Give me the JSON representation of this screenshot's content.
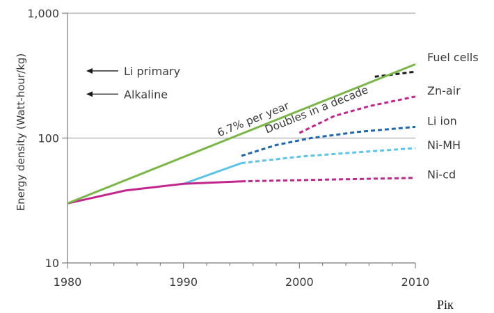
{
  "chart_data": {
    "type": "line",
    "title": "",
    "xlabel": "",
    "x_unit_label": "Рік",
    "ylabel": "Energy density (Watt-hour/kg)",
    "y_scale": "log",
    "xlim": [
      1980,
      2010
    ],
    "ylim": [
      10,
      1000
    ],
    "x_ticks": [
      1980,
      1990,
      2000,
      2010
    ],
    "y_ticks": [
      10,
      100,
      1000
    ],
    "y_tick_labels": [
      "10",
      "100",
      "1,000"
    ],
    "grid": "horizontal",
    "series": [
      {
        "name": "Fuel cells",
        "color": "#1a1a1a",
        "style": "dashed",
        "points": [
          [
            2006.5,
            310
          ],
          [
            2010,
            340
          ]
        ]
      },
      {
        "name": "Zn-air",
        "color": "#c2268c",
        "style": "dashed",
        "points": [
          [
            2000,
            110
          ],
          [
            2003,
            150
          ],
          [
            2006,
            180
          ],
          [
            2010,
            215
          ]
        ]
      },
      {
        "name": "Li ion",
        "color": "#1f67ad",
        "style": "dashed",
        "points": [
          [
            1995,
            72
          ],
          [
            1998,
            88
          ],
          [
            2001,
            100
          ],
          [
            2005,
            112
          ],
          [
            2010,
            123
          ]
        ]
      },
      {
        "name": "Ni-MH",
        "color": "#5cc3ea",
        "style": "dashed",
        "points": [
          [
            1995,
            63
          ],
          [
            2000,
            71
          ],
          [
            2005,
            77
          ],
          [
            2010,
            83
          ]
        ]
      },
      {
        "name": "Ni-cd",
        "color": "#c2268c",
        "style": "dashed",
        "points": [
          [
            1995,
            45
          ],
          [
            2000,
            46
          ],
          [
            2005,
            47
          ],
          [
            2010,
            48
          ]
        ]
      },
      {
        "name": "",
        "color": "#5cc3ea",
        "style": "solid",
        "points": [
          [
            1990,
            43
          ],
          [
            1995,
            63
          ]
        ]
      },
      {
        "name": "",
        "color": "#c2268c",
        "style": "solid",
        "points": [
          [
            1980,
            30
          ],
          [
            1985,
            38
          ],
          [
            1990,
            43
          ],
          [
            1995,
            45
          ]
        ]
      },
      {
        "name": "",
        "color": "#7ab648",
        "style": "solid",
        "points": [
          [
            1980,
            30
          ],
          [
            2010,
            390
          ]
        ]
      }
    ],
    "trend_annotation": {
      "line1": "6.7% per year",
      "line2": "Doubles in a decade"
    },
    "side_notes": [
      {
        "text": "Li primary",
        "y_value": 345
      },
      {
        "text": "Alkaline",
        "y_value": 225
      }
    ]
  }
}
